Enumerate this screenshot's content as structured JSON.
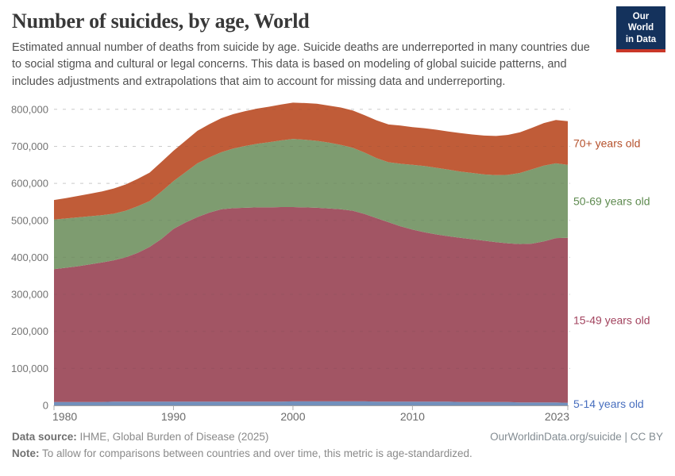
{
  "header": {
    "title": "Number of suicides, by age, World",
    "subtitle": "Estimated annual number of deaths from suicide by age. Suicide deaths are underreported in many countries due to social stigma and cultural or legal concerns. This data is based on modeling of global suicide patterns, and includes adjustments and extrapolations that aim to account for missing data and underreporting."
  },
  "logo": {
    "line1": "Our World",
    "line2": "in Data",
    "bg_color": "#14325c",
    "bar_color": "#c93728"
  },
  "footer": {
    "source_label": "Data source:",
    "source_value": "IHME, Global Burden of Disease (2025)",
    "note_label": "Note:",
    "note_value": "To allow for comparisons between countries and over time, this metric is age-standardized.",
    "right_text": "OurWorldinData.org/suicide | CC BY"
  },
  "chart_data": {
    "type": "area",
    "stacked": true,
    "title": "Number of suicides, by age, World",
    "xlabel": "",
    "ylabel": "",
    "grid": "horizontal-dashed",
    "legend_position": "right-of-plot",
    "xlim": [
      1980,
      2023
    ],
    "ylim": [
      0,
      820000
    ],
    "x_ticks": [
      1980,
      1990,
      2000,
      2010,
      2023
    ],
    "y_ticks": [
      0,
      100000,
      200000,
      300000,
      400000,
      500000,
      600000,
      700000,
      800000
    ],
    "x": [
      1980,
      1981,
      1982,
      1983,
      1984,
      1985,
      1986,
      1987,
      1988,
      1989,
      1990,
      1991,
      1992,
      1993,
      1994,
      1995,
      1996,
      1997,
      1998,
      1999,
      2000,
      2001,
      2002,
      2003,
      2004,
      2005,
      2006,
      2007,
      2008,
      2009,
      2010,
      2011,
      2012,
      2013,
      2014,
      2015,
      2016,
      2017,
      2018,
      2019,
      2020,
      2021,
      2022,
      2023
    ],
    "series": [
      {
        "name": "5-14 years old",
        "color": "#7290bc",
        "label_color": "#476ebe",
        "values": [
          9000,
          9000,
          9000,
          9000,
          9000,
          10000,
          10000,
          10000,
          10000,
          10000,
          10000,
          10000,
          10000,
          10000,
          10000,
          10000,
          10000,
          10000,
          10000,
          10000,
          11000,
          11000,
          11000,
          11000,
          11000,
          11000,
          11000,
          10000,
          10000,
          10000,
          10000,
          10000,
          10000,
          10000,
          9000,
          9000,
          9000,
          9000,
          9000,
          8000,
          8000,
          8000,
          8000,
          7000
        ]
      },
      {
        "name": "15-49 years old",
        "color": "#a25564",
        "label_color": "#a2435e",
        "values": [
          359000,
          363000,
          367000,
          372000,
          377000,
          382000,
          390000,
          402000,
          418000,
          440000,
          467000,
          484000,
          499000,
          511000,
          520000,
          523000,
          524000,
          525000,
          525000,
          526000,
          525000,
          524000,
          523000,
          521000,
          519000,
          515000,
          506000,
          496000,
          485000,
          474000,
          465000,
          458000,
          452000,
          447000,
          444000,
          440000,
          436000,
          432000,
          429000,
          428000,
          429000,
          435000,
          444000,
          446000
        ]
      },
      {
        "name": "50-69 years old",
        "color": "#7e9c70",
        "label_color": "#5f8b50",
        "values": [
          134000,
          133000,
          132000,
          130000,
          128000,
          126000,
          126000,
          126000,
          124000,
          128000,
          129000,
          136000,
          145000,
          149000,
          154000,
          161000,
          167000,
          172000,
          176000,
          180000,
          184000,
          183000,
          181000,
          178000,
          174000,
          170000,
          166000,
          162000,
          162000,
          169000,
          175000,
          179000,
          180000,
          180000,
          179000,
          179000,
          179000,
          181000,
          185000,
          192000,
          201000,
          205000,
          202000,
          197000
        ]
      },
      {
        "name": "70+ years old",
        "color": "#c05c38",
        "label_color": "#b5512c",
        "values": [
          53000,
          55000,
          58000,
          61000,
          64000,
          68000,
          71000,
          74000,
          77000,
          80000,
          82000,
          85000,
          88000,
          90000,
          92000,
          93000,
          94000,
          95000,
          96000,
          97000,
          98000,
          99000,
          100000,
          100000,
          101000,
          101000,
          101000,
          102000,
          102000,
          103000,
          102000,
          102000,
          103000,
          103000,
          104000,
          104000,
          105000,
          106000,
          108000,
          110000,
          112000,
          115000,
          117000,
          118000
        ]
      }
    ]
  }
}
